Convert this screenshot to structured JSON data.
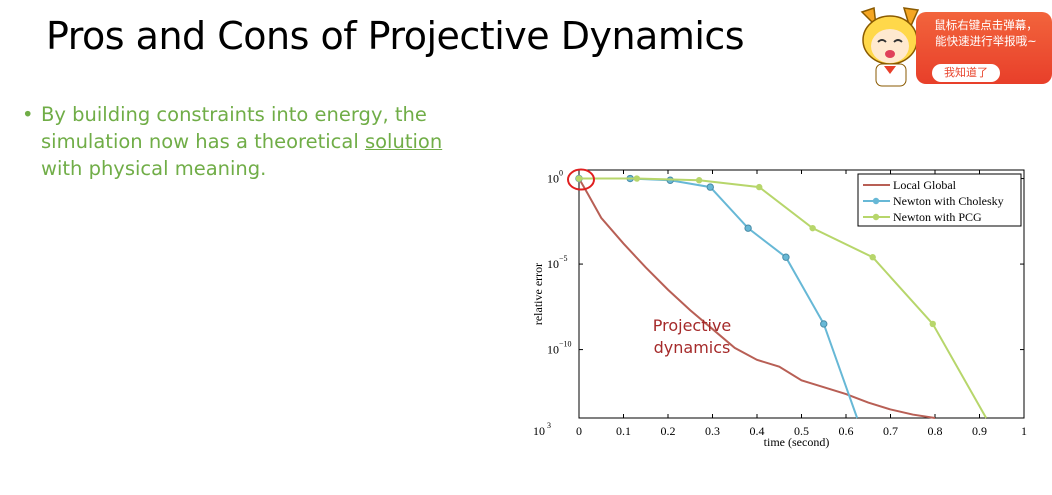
{
  "slide": {
    "title": "Pros and Cons of Projective Dynamics",
    "bullet_symbol": "•",
    "bullet_before": "By building constraints into energy, the simulation now has a theoretical ",
    "bullet_link": "solution",
    "bullet_after": " with physical meaning."
  },
  "chart_data": {
    "type": "line",
    "xlabel": "time (second)",
    "ylabel": "relative error",
    "x_ticks": [
      "0",
      "0.1",
      "0.2",
      "0.3",
      "0.4",
      "0.5",
      "0.6",
      "0.7",
      "0.8",
      "0.9",
      "1"
    ],
    "y_ticks": [
      {
        "label": "10",
        "exp": "0"
      },
      {
        "label": "10",
        "exp": "−5"
      },
      {
        "label": "10",
        "exp": "−10"
      }
    ],
    "corner_label": {
      "label": "10",
      "exp": "3"
    },
    "y_log_scale": true,
    "xlim": [
      0,
      1
    ],
    "ylim_log10": [
      -14,
      0.5
    ],
    "legend_position": "top-right",
    "annotation": [
      "Projective",
      "dynamics"
    ],
    "colors": {
      "local_global": "#b85f55",
      "cholesky": "#67b8d6",
      "pcg": "#b7d66b",
      "annotation": "#a52a2a",
      "highlight": "#e02020"
    },
    "series": [
      {
        "name": "Local Global",
        "color": "#b85f55",
        "markers": false,
        "x": [
          0,
          0.02,
          0.05,
          0.1,
          0.15,
          0.2,
          0.25,
          0.3,
          0.35,
          0.4,
          0.45,
          0.5,
          0.55,
          0.6,
          0.65,
          0.7,
          0.75,
          0.8
        ],
        "log10y": [
          0,
          -0.9,
          -2.3,
          -3.8,
          -5.2,
          -6.5,
          -7.7,
          -8.8,
          -9.9,
          -10.6,
          -11.0,
          -11.8,
          -12.2,
          -12.6,
          -13.1,
          -13.5,
          -13.8,
          -14.0
        ]
      },
      {
        "name": "Newton with Cholesky",
        "color": "#67b8d6",
        "markers": true,
        "x": [
          0,
          0.115,
          0.205,
          0.295,
          0.38,
          0.465,
          0.55,
          0.625
        ],
        "log10y": [
          0,
          0,
          -0.1,
          -0.5,
          -2.9,
          -4.6,
          -8.5,
          -14.0
        ]
      },
      {
        "name": "Newton with PCG",
        "color": "#b7d66b",
        "markers": true,
        "x": [
          0,
          0.13,
          0.27,
          0.405,
          0.525,
          0.66,
          0.795,
          0.915
        ],
        "log10y": [
          0,
          0,
          -0.1,
          -0.5,
          -2.9,
          -4.6,
          -8.5,
          -14.0
        ]
      }
    ]
  },
  "ad": {
    "line1": "鼠标右键点击弹幕，",
    "line2": "能快速进行举报哦~",
    "button": "我知道了"
  }
}
